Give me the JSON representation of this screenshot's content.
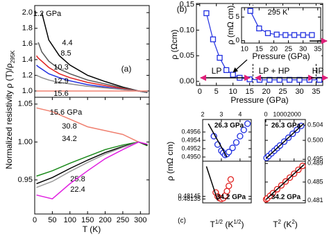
{
  "chart_data": [
    {
      "type": "line",
      "xlim": [
        0,
        325
      ],
      "ylim": [
        0.92,
        2.09
      ],
      "yticks": [
        {
          "value": 1.0,
          "label": "1.0"
        },
        1.2,
        1.4,
        1.6,
        1.8,
        {
          "value": 2.0,
          "label": "2.0"
        }
      ],
      "ylabel": [
        {
          "text": "Normalized resistivity ρ (T)/ρ"
        },
        {
          "text": "295K",
          "script": "sub"
        }
      ],
      "annotations": [
        {
          "text": "(a)"
        }
      ],
      "x": [
        5,
        10,
        20,
        40,
        70,
        100,
        150,
        200,
        250,
        295,
        320
      ],
      "series": [
        {
          "name": "1.2 GPa",
          "color": "#000000",
          "values": [
            null,
            null,
            2.0,
            1.65,
            1.45,
            1.33,
            1.2,
            1.12,
            1.05,
            1.0,
            0.98
          ]
        },
        {
          "name": "4.4",
          "color": "#555555",
          "values": [
            null,
            1.62,
            1.5,
            1.38,
            1.28,
            1.22,
            1.14,
            1.09,
            1.04,
            1.0,
            0.98
          ]
        },
        {
          "name": "8.5",
          "color": "#e0201e",
          "values": [
            1.45,
            1.42,
            1.38,
            1.3,
            1.22,
            1.17,
            1.11,
            1.07,
            1.03,
            1.0,
            0.99
          ]
        },
        {
          "name": "10.3",
          "color": "#1f2ee0",
          "values": [
            1.33,
            1.31,
            1.28,
            1.22,
            1.17,
            1.13,
            1.08,
            1.05,
            1.02,
            1.0,
            0.99
          ]
        },
        {
          "name": "12.9",
          "color": "#8c8c8c",
          "values": [
            1.2,
            1.19,
            1.17,
            1.14,
            1.11,
            1.09,
            1.06,
            1.04,
            1.02,
            1.0,
            0.99
          ]
        },
        {
          "name": "15.6",
          "color": "#f08070",
          "values": [
            1.0,
            1.0,
            1.0,
            1.0,
            1.0,
            1.0,
            1.0,
            1.0,
            1.0,
            1.0,
            1.0
          ]
        }
      ]
    },
    {
      "type": "line",
      "xlim": [
        0,
        325
      ],
      "ylim": [
        0.905,
        1.059
      ],
      "xticks": [
        0,
        50,
        100,
        150,
        200,
        250,
        300
      ],
      "yticks": [
        0.95,
        {
          "value": 1.0,
          "label": "1.00"
        },
        1.05
      ],
      "xlabel": "T (K)",
      "x": [
        5,
        50,
        100,
        150,
        200,
        250,
        295,
        320
      ],
      "series": [
        {
          "name": "15.6 GPa",
          "color": "#f08070",
          "values": [
            1.045,
            1.04,
            1.03,
            1.02,
            1.015,
            1.01,
            1.0,
            0.995
          ]
        },
        {
          "name": "30.8",
          "color": "#1a8a1a",
          "values": [
            0.955,
            0.962,
            0.972,
            0.981,
            0.99,
            0.996,
            1.0,
            0.995
          ]
        },
        {
          "name": "34.2",
          "color": "#000000",
          "values": [
            0.945,
            0.953,
            0.965,
            0.976,
            0.986,
            0.994,
            1.0,
            0.996
          ]
        },
        {
          "name": "25.8",
          "color": "#999999",
          "values": [
            0.94,
            0.948,
            0.961,
            0.973,
            0.984,
            0.993,
            1.0,
            0.997
          ]
        },
        {
          "name": "22.4",
          "color": "#e020e0",
          "values": [
            0.93,
            0.925,
            0.945,
            0.962,
            0.978,
            0.99,
            1.0,
            0.997
          ]
        }
      ]
    },
    {
      "type": "line",
      "xlim": [
        -1,
        37
      ],
      "ylim": [
        -0.008,
        0.152
      ],
      "xticks": [
        0,
        5,
        10,
        15,
        20,
        25,
        30,
        35
      ],
      "yticks": [
        {
          "value": 0.0,
          "label": "0.00"
        },
        {
          "value": 0.05,
          "label": "0.05"
        },
        {
          "value": 0.1,
          "label": "0.10"
        },
        {
          "value": 0.15,
          "label": "0.15"
        }
      ],
      "xlabel": "Pressure (GPa)",
      "ylabel": "ρ (Ωcm)",
      "boundaries": [
        16,
        35
      ],
      "annotations": [
        {
          "text": "(b)"
        },
        {
          "text": "LP"
        },
        {
          "text": "LP + HP"
        },
        {
          "text": "HP"
        },
        {
          "text": "HP"
        }
      ],
      "x": [
        2,
        4,
        6,
        8,
        10,
        12,
        15,
        18,
        21,
        24,
        27,
        30,
        33,
        36
      ],
      "series": [
        {
          "color": "#1f2ee0",
          "marker": "square",
          "values": [
            0.133,
            0.082,
            0.046,
            0.022,
            0.013,
            0.007,
            0.004,
            0.003,
            0.003,
            0.003,
            0.003,
            0.003,
            0.003,
            0.003
          ]
        }
      ]
    },
    {
      "type": "line",
      "xlim": [
        9,
        36
      ],
      "ylim": [
        -0.5,
        7
      ],
      "xticks": [
        10,
        15,
        20,
        25,
        30,
        35
      ],
      "yticks": [
        0,
        5
      ],
      "xlabel": "Pressure (GPa)",
      "ylabel": "ρ (mΩ cm)",
      "annotations": [
        {
          "text": "295 K"
        }
      ],
      "x": [
        12,
        15,
        18,
        21,
        24,
        27,
        30,
        33
      ],
      "series": [
        {
          "color": "#1f2ee0",
          "marker": "square",
          "values": [
            6.3,
            2.6,
            1.6,
            1.3,
            1.2,
            1.2,
            1.2,
            1.2
          ]
        }
      ]
    },
    {
      "type": "scatter",
      "xlim": [
        2,
        4.6
      ],
      "ylim": [
        0.4949,
        0.4959
      ],
      "xticks": [
        2,
        3,
        4
      ],
      "yticks": [
        {
          "value": 0.495,
          "label": "0.4950"
        },
        {
          "value": 0.4952,
          "label": "0.4952"
        },
        {
          "value": 0.4954,
          "label": "0.4954"
        },
        {
          "value": 0.4956,
          "label": "0.4956"
        }
      ],
      "ylabel": "ρ (mΩ cm)",
      "annotations": [
        {
          "text": "26.3 GPa",
          "color": "#9a1fc0"
        }
      ],
      "series": [
        {
          "color": "#1f2ee0",
          "marker": "circle",
          "x": [
            2.6,
            2.8,
            3.0,
            3.1,
            3.2,
            3.3,
            3.4,
            3.6,
            3.8,
            4.0,
            4.2,
            4.4
          ],
          "values": [
            0.4955,
            0.4953,
            0.49515,
            0.4951,
            0.49505,
            0.49507,
            0.49512,
            0.49522,
            0.49535,
            0.4955,
            0.49565,
            0.4958
          ]
        },
        {
          "color": "#000000",
          "x": [
            2.3,
            3.3
          ],
          "values": [
            0.4958,
            0.495
          ]
        }
      ]
    },
    {
      "type": "scatter",
      "xlim": [
        -50,
        2800
      ],
      "ylim": [
        0.4945,
        0.5055
      ],
      "xticks": [
        0,
        1000,
        2000
      ],
      "yticks": [
        0.495,
        {
          "value": 0.5,
          "label": "0.500"
        },
        0.504
      ],
      "annotations": [
        {
          "text": "26.3 GPa",
          "color": "#9a1fc0"
        }
      ],
      "series": [
        {
          "color": "#1f2ee0",
          "marker": "circle",
          "x": [
            50,
            200,
            400,
            600,
            800,
            1000,
            1300,
            1600,
            1900,
            2200,
            2500
          ],
          "values": [
            0.49537,
            0.49589,
            0.49658,
            0.49726,
            0.49795,
            0.49864,
            0.49967,
            0.5007,
            0.50174,
            0.50277,
            0.5038
          ]
        },
        {
          "color": "#000000",
          "x": [
            0,
            2700
          ],
          "values": [
            0.4952,
            0.50449
          ]
        }
      ]
    },
    {
      "type": "scatter",
      "xlim": [
        2,
        4.6
      ],
      "ylim": [
        0.4812,
        0.4828
      ],
      "yticks": [
        0.48135,
        0.48145
      ],
      "xlabel": [
        {
          "text": "T"
        },
        {
          "text": "1/2",
          "script": "super"
        },
        {
          "text": " (K"
        },
        {
          "text": "1/2",
          "script": "super"
        },
        {
          "text": ")"
        }
      ],
      "annotations": [
        {
          "text": "34.2 GPa",
          "color": "#e0201e"
        },
        {
          "text": "(c)"
        }
      ],
      "series": [
        {
          "color": "#e0201e",
          "marker": "circle",
          "x": [
            2.7,
            2.8,
            2.9,
            3.0,
            3.1,
            3.2,
            3.3,
            3.4,
            3.5
          ],
          "values": [
            0.4816,
            0.48145,
            0.48138,
            0.48135,
            0.48138,
            0.48148,
            0.48165,
            0.48185,
            0.4821
          ]
        },
        {
          "color": "#000000",
          "x": [
            2.2,
            2.8
          ],
          "values": [
            0.4826,
            0.4813
          ]
        }
      ]
    },
    {
      "type": "scatter",
      "xlim": [
        -50,
        2800
      ],
      "ylim": [
        0.4805,
        0.4895
      ],
      "yticks": [
        0.481,
        0.485,
        0.489
      ],
      "xlabel": [
        {
          "text": "T"
        },
        {
          "text": "2",
          "script": "super"
        },
        {
          "text": " (K"
        },
        {
          "text": "2",
          "script": "super"
        },
        {
          "text": ")"
        }
      ],
      "annotations": [
        {
          "text": "34.2 GPa",
          "color": "#e0201e"
        }
      ],
      "series": [
        {
          "color": "#e0201e",
          "marker": "circle",
          "x": [
            20,
            100,
            300,
            500,
            800,
            1100,
            1400,
            1700,
            2000,
            2300,
            2600
          ],
          "values": [
            0.48126,
            0.48148,
            0.48204,
            0.4826,
            0.48344,
            0.48428,
            0.48512,
            0.48596,
            0.4868,
            0.48764,
            0.48848
          ]
        },
        {
          "color": "#000000",
          "x": [
            0,
            2700
          ],
          "values": [
            0.4812,
            0.48876
          ]
        }
      ]
    }
  ]
}
